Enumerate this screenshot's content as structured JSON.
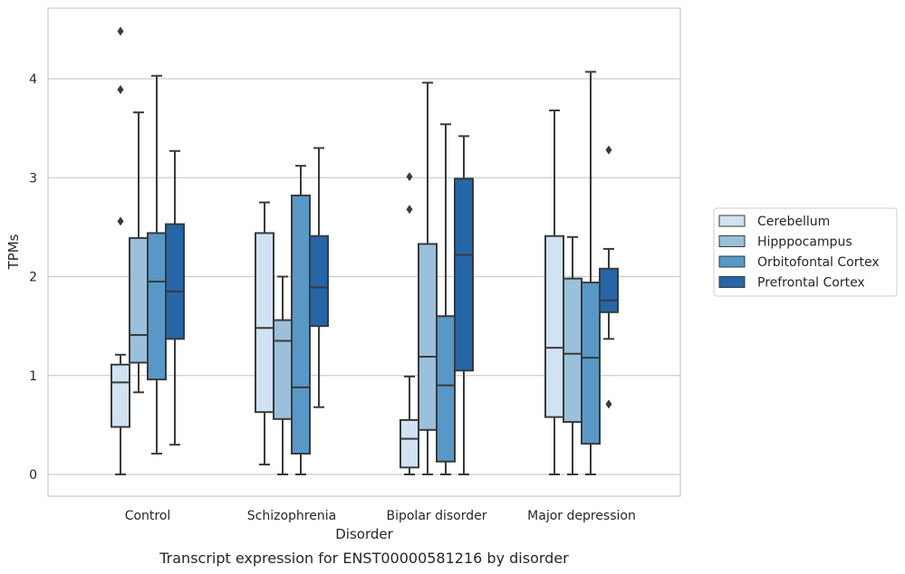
{
  "chart_data": {
    "type": "box",
    "title": "",
    "caption": "Transcript expression for ENST00000581216 by disorder",
    "xlabel": "Disorder",
    "ylabel": "TPMs",
    "ylim": [
      -0.22,
      4.7
    ],
    "yticks": [
      0,
      1,
      2,
      3,
      4
    ],
    "categories": [
      "Control",
      "Schizophrenia",
      "Bipolar disorder",
      "Major depression"
    ],
    "grid": "horizontal",
    "legend_position": "right",
    "series": [
      {
        "name": "Cerebellum",
        "color": "#d1e2f2",
        "boxes": [
          {
            "whisker_low": 0,
            "q1": 0.48,
            "median": 0.93,
            "q3": 1.11,
            "whisker_high": 1.21,
            "outliers": [
              2.56,
              3.89,
              4.48
            ]
          },
          {
            "whisker_low": 0.1,
            "q1": 0.63,
            "median": 1.48,
            "q3": 2.44,
            "whisker_high": 2.75,
            "outliers": []
          },
          {
            "whisker_low": 0,
            "q1": 0.07,
            "median": 0.36,
            "q3": 0.55,
            "whisker_high": 0.99,
            "outliers": [
              2.68,
              3.01
            ]
          },
          {
            "whisker_low": 0,
            "q1": 0.58,
            "median": 1.28,
            "q3": 2.41,
            "whisker_high": 3.68,
            "outliers": []
          }
        ]
      },
      {
        "name": "Hipppocampus",
        "color": "#9ac0db",
        "boxes": [
          {
            "whisker_low": 0.83,
            "q1": 1.13,
            "median": 1.41,
            "q3": 2.39,
            "whisker_high": 3.66,
            "outliers": []
          },
          {
            "whisker_low": 0,
            "q1": 0.56,
            "median": 1.35,
            "q3": 1.56,
            "whisker_high": 2.0,
            "outliers": []
          },
          {
            "whisker_low": 0,
            "q1": 0.45,
            "median": 1.19,
            "q3": 2.33,
            "whisker_high": 3.96,
            "outliers": []
          },
          {
            "whisker_low": 0,
            "q1": 0.53,
            "median": 1.22,
            "q3": 1.98,
            "whisker_high": 2.4,
            "outliers": []
          }
        ]
      },
      {
        "name": "Orbitofontal Cortex",
        "color": "#5798c6",
        "boxes": [
          {
            "whisker_low": 0.21,
            "q1": 0.96,
            "median": 1.95,
            "q3": 2.44,
            "whisker_high": 4.03,
            "outliers": []
          },
          {
            "whisker_low": 0,
            "q1": 0.21,
            "median": 0.88,
            "q3": 2.82,
            "whisker_high": 3.12,
            "outliers": []
          },
          {
            "whisker_low": 0,
            "q1": 0.13,
            "median": 0.9,
            "q3": 1.6,
            "whisker_high": 3.54,
            "outliers": []
          },
          {
            "whisker_low": 0,
            "q1": 0.31,
            "median": 1.18,
            "q3": 1.94,
            "whisker_high": 4.07,
            "outliers": []
          }
        ]
      },
      {
        "name": "Prefrontal Cortex",
        "color": "#2466a7",
        "boxes": [
          {
            "whisker_low": 0.3,
            "q1": 1.37,
            "median": 1.85,
            "q3": 2.53,
            "whisker_high": 3.27,
            "outliers": []
          },
          {
            "whisker_low": 0.68,
            "q1": 1.5,
            "median": 1.89,
            "q3": 2.41,
            "whisker_high": 3.3,
            "outliers": []
          },
          {
            "whisker_low": 0,
            "q1": 1.05,
            "median": 2.22,
            "q3": 2.99,
            "whisker_high": 3.42,
            "outliers": []
          },
          {
            "whisker_low": 1.37,
            "q1": 1.64,
            "median": 1.76,
            "q3": 2.08,
            "whisker_high": 2.28,
            "outliers": [
              0.71,
              3.28
            ]
          }
        ]
      }
    ]
  }
}
